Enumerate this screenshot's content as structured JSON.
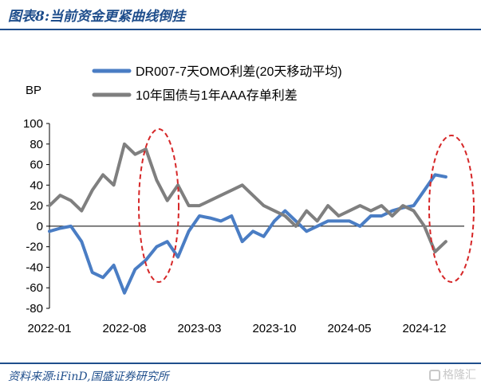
{
  "header": {
    "title": "图表8:当前资金更紧曲线倒挂"
  },
  "footer": {
    "source": "资料来源:iFinD,国盛证券研究所",
    "watermark": "格隆汇"
  },
  "colors": {
    "series1": "#4a7dc4",
    "series2": "#7f7f7f",
    "highlight": "#d62728",
    "brand": "#1f4e8c"
  },
  "chart_data": {
    "type": "line",
    "ylabel": "BP",
    "ylim": [
      -80,
      100
    ],
    "yticks": [
      "100",
      "80",
      "60",
      "40",
      "20",
      "0",
      "-20",
      "-40",
      "-60",
      "-80"
    ],
    "xticks": [
      "2022-01",
      "2022-08",
      "2023-03",
      "2023-10",
      "2024-05",
      "2024-12"
    ],
    "legend_position": "top-right",
    "series": [
      {
        "name": "DR007-7天OMO利差(20天移动平均)",
        "x": [
          "2022-01",
          "2022-02",
          "2022-03",
          "2022-04",
          "2022-05",
          "2022-06",
          "2022-07",
          "2022-08",
          "2022-09",
          "2022-10",
          "2022-11",
          "2022-12",
          "2023-01",
          "2023-02",
          "2023-03",
          "2023-04",
          "2023-05",
          "2023-06",
          "2023-07",
          "2023-08",
          "2023-09",
          "2023-10",
          "2023-11",
          "2023-12",
          "2024-01",
          "2024-02",
          "2024-03",
          "2024-04",
          "2024-05",
          "2024-06",
          "2024-07",
          "2024-08",
          "2024-09",
          "2024-10",
          "2024-11",
          "2024-12",
          "2025-01",
          "2025-02"
        ],
        "values": [
          -5,
          -2,
          0,
          -15,
          -45,
          -50,
          -38,
          -65,
          -42,
          -33,
          -20,
          -15,
          -30,
          -5,
          10,
          8,
          5,
          10,
          -15,
          -5,
          -10,
          5,
          15,
          5,
          -5,
          0,
          5,
          5,
          5,
          0,
          10,
          10,
          15,
          18,
          20,
          35,
          50,
          48
        ]
      },
      {
        "name": "10年国债与1年AAA存单利差",
        "x": [
          "2022-01",
          "2022-02",
          "2022-03",
          "2022-04",
          "2022-05",
          "2022-06",
          "2022-07",
          "2022-08",
          "2022-09",
          "2022-10",
          "2022-11",
          "2022-12",
          "2023-01",
          "2023-02",
          "2023-03",
          "2023-04",
          "2023-05",
          "2023-06",
          "2023-07",
          "2023-08",
          "2023-09",
          "2023-10",
          "2023-11",
          "2023-12",
          "2024-01",
          "2024-02",
          "2024-03",
          "2024-04",
          "2024-05",
          "2024-06",
          "2024-07",
          "2024-08",
          "2024-09",
          "2024-10",
          "2024-11",
          "2024-12",
          "2025-01",
          "2025-02"
        ],
        "values": [
          20,
          30,
          25,
          15,
          35,
          50,
          40,
          80,
          70,
          75,
          45,
          25,
          40,
          20,
          20,
          25,
          30,
          35,
          40,
          30,
          20,
          15,
          10,
          0,
          15,
          5,
          20,
          10,
          15,
          20,
          15,
          20,
          10,
          20,
          15,
          0,
          -25,
          -15
        ]
      }
    ]
  }
}
